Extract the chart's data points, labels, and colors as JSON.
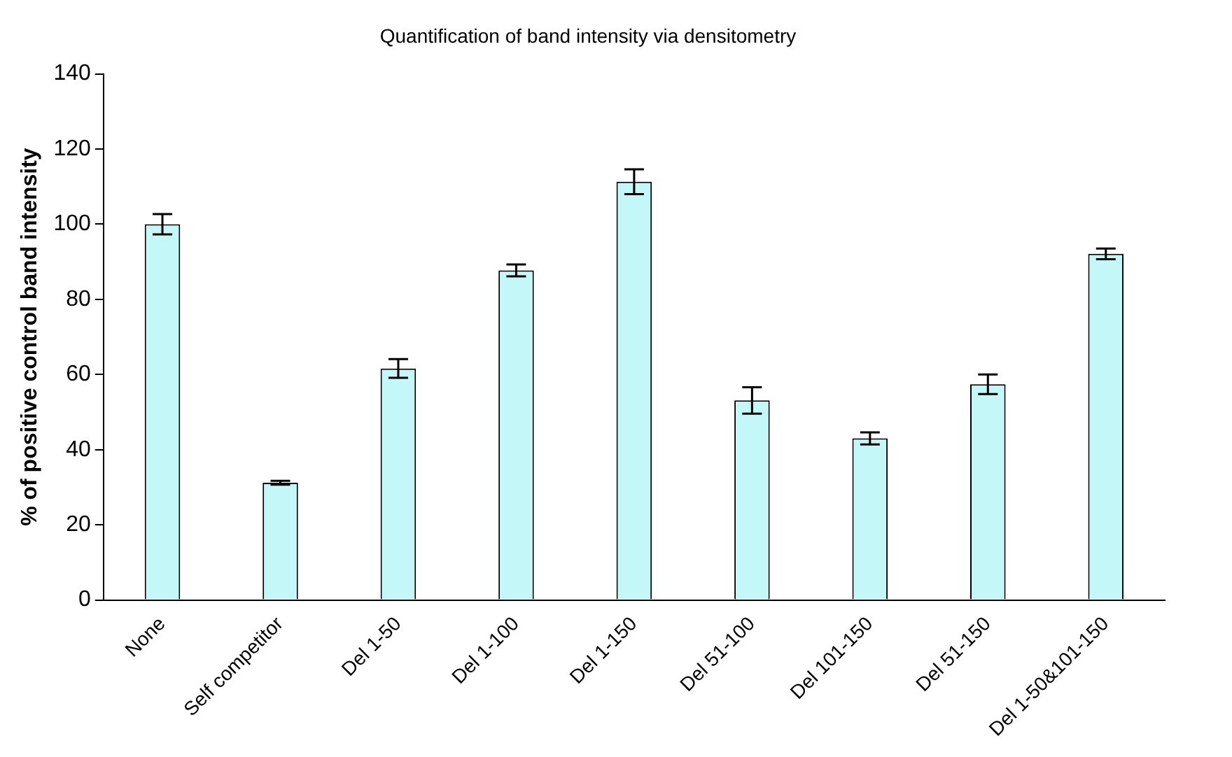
{
  "chart_data": {
    "type": "bar",
    "title": "Quantification of band intensity via densitometry",
    "ylabel": "% of positive control band intensity",
    "categories": [
      "None",
      "Self competitor",
      "Del 1-50",
      "Del 1-100",
      "Del 1-150",
      "Del 51-100",
      "Del 101-150",
      "Del 51-150",
      "Del 1-50&101-150"
    ],
    "values": [
      100,
      31.2,
      61.6,
      87.7,
      111.3,
      53.1,
      43.0,
      57.4,
      92.1
    ],
    "errors": [
      2.7,
      0.5,
      2.5,
      1.6,
      3.3,
      3.5,
      1.6,
      2.6,
      1.4
    ],
    "color": "#c4f7f7",
    "ylim": [
      0,
      140
    ],
    "yticks": [
      0,
      20,
      40,
      60,
      80,
      100,
      120,
      140
    ],
    "grid": false,
    "legend": false
  }
}
